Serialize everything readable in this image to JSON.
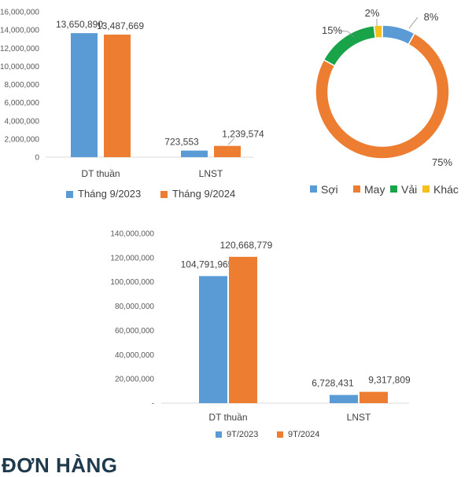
{
  "colors": {
    "series_a": "#5b9bd5",
    "series_b": "#ed7d31",
    "green": "#1aa44a",
    "yellow": "#f4c01e",
    "axis": "#d9d9d9",
    "heading": "#1f3a4d"
  },
  "heading": "ĐƠN HÀNG",
  "chart_data": [
    {
      "type": "bar",
      "categories": [
        "DT thuần",
        "LNST"
      ],
      "series": [
        {
          "name": "Tháng 9/2023",
          "values": [
            13650890,
            723553
          ],
          "labels": [
            "13,650,890",
            "723,553"
          ]
        },
        {
          "name": "Tháng 9/2024",
          "values": [
            13487669,
            1239574
          ],
          "labels": [
            "13,487,669",
            "1,239,574"
          ]
        }
      ],
      "ylim": [
        0,
        16000000
      ],
      "yticks": [
        "0",
        "2,000,000",
        "4,000,000",
        "6,000,000",
        "8,000,000",
        "10,000,000",
        "12,000,000",
        "14,000,000",
        "16,000,000"
      ],
      "legend": "bottom"
    },
    {
      "type": "pie",
      "style": "donut",
      "labels": [
        "Sợi",
        "May",
        "Vải",
        "Khác"
      ],
      "values": [
        8,
        75,
        15,
        2
      ],
      "value_labels": [
        "8%",
        "75%",
        "15%",
        "2%"
      ],
      "legend": "bottom"
    },
    {
      "type": "bar",
      "categories": [
        "DT thuần",
        "LNST"
      ],
      "series": [
        {
          "name": "9T/2023",
          "values": [
            104791965,
            6728431
          ],
          "labels": [
            "104,791,965",
            "6,728,431"
          ]
        },
        {
          "name": "9T/2024",
          "values": [
            120668779,
            9317809
          ],
          "labels": [
            "120,668,779",
            "9,317,809"
          ]
        }
      ],
      "ylim": [
        0,
        140000000
      ],
      "yticks": [
        "-",
        "20,000,000",
        "40,000,000",
        "60,000,000",
        "80,000,000",
        "100,000,000",
        "120,000,000",
        "140,000,000"
      ],
      "legend": "bottom"
    }
  ]
}
